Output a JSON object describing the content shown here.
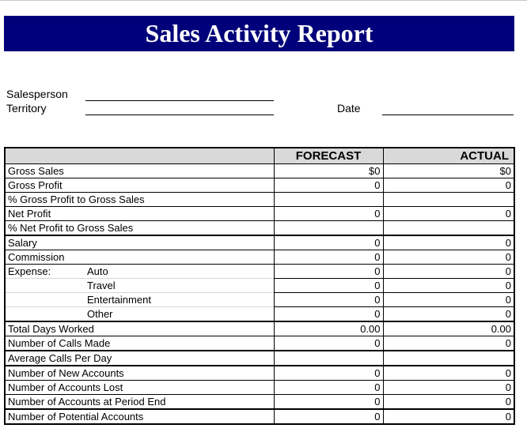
{
  "title": "Sales Activity Report",
  "header": {
    "salesperson_label": "Salesperson",
    "territory_label": "Territory",
    "date_label": "Date"
  },
  "table": {
    "col_forecast": "FORECAST",
    "col_actual": "ACTUAL",
    "rows": [
      {
        "label": "Gross Sales",
        "forecast": "$0",
        "actual": "$0"
      },
      {
        "label": "Gross Profit",
        "forecast": "0",
        "actual": "0"
      },
      {
        "label": "% Gross Profit to Gross Sales",
        "forecast": "",
        "actual": ""
      },
      {
        "label": "Net Profit",
        "forecast": "0",
        "actual": "0"
      },
      {
        "label": "% Net Profit to Gross Sales",
        "forecast": "",
        "actual": ""
      },
      {
        "label": "Salary",
        "forecast": "0",
        "actual": "0"
      },
      {
        "label": "Commission",
        "forecast": "0",
        "actual": "0"
      },
      {
        "label": "Expense:",
        "sublabel": "Auto",
        "forecast": "0",
        "actual": "0"
      },
      {
        "label": "",
        "sublabel": "Travel",
        "forecast": "0",
        "actual": "0"
      },
      {
        "label": "",
        "sublabel": "Entertainment",
        "forecast": "0",
        "actual": "0"
      },
      {
        "label": "",
        "sublabel": "Other",
        "forecast": "0",
        "actual": "0"
      },
      {
        "label": "Total Days Worked",
        "forecast": "0.00",
        "actual": "0.00"
      },
      {
        "label": "Number of Calls Made",
        "forecast": "0",
        "actual": "0"
      },
      {
        "label": "Average Calls Per Day",
        "forecast": "",
        "actual": ""
      },
      {
        "label": "Number of New Accounts",
        "forecast": "0",
        "actual": "0"
      },
      {
        "label": "Number of Accounts Lost",
        "forecast": "0",
        "actual": "0"
      },
      {
        "label": "Number of Accounts at Period End",
        "forecast": "0",
        "actual": "0"
      },
      {
        "label": "Number of Potential Accounts",
        "forecast": "0",
        "actual": "0"
      }
    ]
  },
  "colors": {
    "title_bg": "#00007a",
    "title_text": "#ffffff",
    "header_bg": "#d9d9d9"
  }
}
